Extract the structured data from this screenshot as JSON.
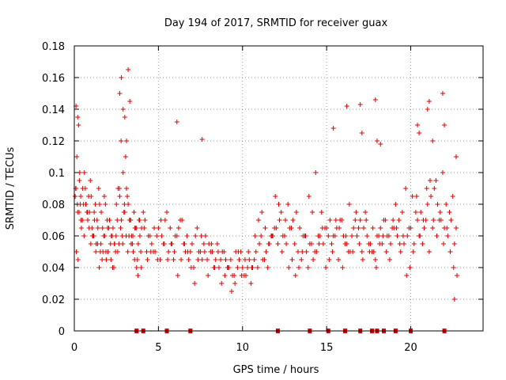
{
  "chart_data": {
    "type": "scatter",
    "title": "Day 194 of 2017, SRMTID for receiver guax",
    "xlabel": "GPS time / hours",
    "ylabel": "SRMTID / TECUs",
    "xlim": [
      0,
      24.3
    ],
    "ylim": [
      0,
      0.18
    ],
    "xticks": [
      0,
      5,
      10,
      15,
      20
    ],
    "xtick_labels": [
      "0",
      "5",
      "10",
      "15",
      "20"
    ],
    "yticks": [
      0,
      0.02,
      0.04,
      0.06,
      0.08,
      0.1,
      0.12,
      0.14,
      0.16,
      0.18
    ],
    "ytick_labels": [
      "0",
      "0.02",
      "0.04",
      "0.06",
      "0.08",
      "0.1",
      "0.12",
      "0.14",
      "0.16",
      "0.18"
    ],
    "grid": true,
    "marker": "+",
    "color": "#e00000",
    "series": [
      {
        "name": "SRMTID",
        "x": [
          0.05,
          0.1,
          0.15,
          0.2,
          0.25,
          0.3,
          0.35,
          0.4,
          0.5,
          0.6,
          0.7,
          0.8,
          0.9,
          1.0,
          1.1,
          1.2,
          1.3,
          1.4,
          1.5,
          1.6,
          1.7,
          1.8,
          1.9,
          2.0,
          2.1,
          2.2,
          2.3,
          2.4,
          2.5,
          2.6,
          2.7,
          2.8,
          2.9,
          3.0,
          3.1,
          3.2,
          3.3,
          3.4,
          3.5,
          3.6,
          3.7,
          3.8,
          3.9,
          4.0,
          4.2,
          4.4,
          4.6,
          4.8,
          5.0,
          5.2,
          5.4,
          5.6,
          5.8,
          6.0,
          6.2,
          6.4,
          6.6,
          6.8,
          7.0,
          7.2,
          7.4,
          7.6,
          7.8,
          8.0,
          8.2,
          8.4,
          8.6,
          8.8,
          9.0,
          9.2,
          9.4,
          9.6,
          9.8,
          10.0,
          10.2,
          10.4,
          10.6,
          10.8,
          11.0,
          11.2,
          11.4,
          11.6,
          11.8,
          12.0,
          12.2,
          12.4,
          12.6,
          12.8,
          13.0,
          13.2,
          13.4,
          13.6,
          13.8,
          14.0,
          14.2,
          14.4,
          14.6,
          14.8,
          15.0,
          15.2,
          15.4,
          15.6,
          15.8,
          16.0,
          16.2,
          16.4,
          16.6,
          16.8,
          17.0,
          17.2,
          17.4,
          17.6,
          17.8,
          18.0,
          18.2,
          18.4,
          18.6,
          18.8,
          19.0,
          19.2,
          19.4,
          19.6,
          19.8,
          20.0,
          20.2,
          20.4,
          20.6,
          20.8,
          21.0,
          21.2,
          21.4,
          21.6,
          21.8,
          22.0,
          22.2,
          22.4,
          22.6,
          0.12,
          0.22,
          0.32,
          0.42,
          0.55,
          0.65,
          0.75,
          0.85,
          0.95,
          1.05,
          1.15,
          1.25,
          1.35,
          1.45,
          1.55,
          1.65,
          1.75,
          1.85,
          1.95,
          2.05,
          2.15,
          2.25,
          2.35,
          2.45,
          2.55,
          2.65,
          2.75,
          2.85,
          2.95,
          3.05,
          3.15,
          3.25,
          3.35,
          3.45,
          3.55,
          3.65,
          3.75,
          3.85,
          3.95,
          4.1,
          4.3,
          4.5,
          4.7,
          4.9,
          5.1,
          5.3,
          5.5,
          5.7,
          5.9,
          6.1,
          6.3,
          6.5,
          6.7,
          6.9,
          7.1,
          7.3,
          7.5,
          7.7,
          7.9,
          8.1,
          8.3,
          8.5,
          8.7,
          8.9,
          9.1,
          9.3,
          9.5,
          9.7,
          9.9,
          10.1,
          10.3,
          10.5,
          10.7,
          10.9,
          11.1,
          11.3,
          11.5,
          11.7,
          11.9,
          12.1,
          12.3,
          12.5,
          12.7,
          12.9,
          13.1,
          13.3,
          13.5,
          13.7,
          13.9,
          14.1,
          14.3,
          14.5,
          14.7,
          14.9,
          15.1,
          15.3,
          15.5,
          15.7,
          15.9,
          16.1,
          16.3,
          16.5,
          16.7,
          16.9,
          17.1,
          17.3,
          17.5,
          17.7,
          17.9,
          18.1,
          18.3,
          18.5,
          18.7,
          18.9,
          19.1,
          19.3,
          19.5,
          19.7,
          19.9,
          20.1,
          20.3,
          20.5,
          20.7,
          20.9,
          21.1,
          21.3,
          21.5,
          21.7,
          21.9,
          22.1,
          22.3,
          22.5,
          22.7,
          0.08,
          0.18,
          0.28,
          0.38,
          0.48,
          0.58,
          0.68,
          0.78,
          0.88,
          0.98,
          1.08,
          1.18,
          1.28,
          1.38,
          1.48,
          1.58,
          1.68,
          1.78,
          1.88,
          1.98,
          2.08,
          2.18,
          2.28,
          2.38,
          2.48,
          2.58,
          2.68,
          2.78,
          2.88,
          2.98,
          3.08,
          3.18,
          3.28,
          3.38,
          3.48,
          3.58,
          3.68,
          3.78,
          3.88,
          3.98,
          4.15,
          4.35,
          4.55,
          4.75,
          4.95,
          5.15,
          5.35,
          5.55,
          5.75,
          5.95,
          6.15,
          6.35,
          6.55,
          6.75,
          6.95,
          7.15,
          7.35,
          7.55,
          7.75,
          7.95,
          8.15,
          8.35,
          8.55,
          8.75,
          8.95,
          9.15,
          9.35,
          9.55,
          9.75,
          9.95,
          10.15,
          10.35,
          10.55,
          10.75,
          10.95,
          11.15,
          11.35,
          11.55,
          11.75,
          11.95,
          12.15,
          12.35,
          12.55,
          12.75,
          12.95,
          13.15,
          13.35,
          13.55,
          13.75,
          13.95,
          14.15,
          14.35,
          14.55,
          14.75,
          14.95,
          15.15,
          15.35,
          15.55,
          15.75,
          15.95,
          16.15,
          16.35,
          16.55,
          16.75,
          16.95,
          17.15,
          17.35,
          17.55,
          17.75,
          17.95,
          18.15,
          18.35,
          18.55,
          18.75,
          18.95,
          19.15,
          19.35,
          19.55,
          19.75,
          19.95,
          20.15,
          20.35,
          20.55,
          20.75,
          20.95,
          21.15,
          21.35,
          21.55,
          21.75,
          21.95,
          22.15,
          22.35,
          22.55,
          22.75,
          2.7,
          2.8,
          2.9,
          3.0,
          3.1,
          3.2,
          3.3,
          6.1,
          7.6,
          15.4,
          16.2,
          17.0,
          17.1,
          17.9,
          18.0,
          18.2,
          20.4,
          20.5,
          21.0,
          21.1,
          21.3,
          21.9,
          22.0,
          22.7,
          0.1,
          0.2,
          22.6
        ],
        "y": [
          0.085,
          0.09,
          0.11,
          0.075,
          0.13,
          0.095,
          0.08,
          0.07,
          0.09,
          0.1,
          0.08,
          0.07,
          0.075,
          0.085,
          0.06,
          0.07,
          0.055,
          0.065,
          0.08,
          0.075,
          0.05,
          0.06,
          0.045,
          0.05,
          0.07,
          0.06,
          0.065,
          0.055,
          0.08,
          0.09,
          0.085,
          0.07,
          0.1,
          0.075,
          0.09,
          0.08,
          0.07,
          0.06,
          0.05,
          0.065,
          0.04,
          0.055,
          0.06,
          0.065,
          0.07,
          0.06,
          0.055,
          0.05,
          0.065,
          0.06,
          0.07,
          0.05,
          0.055,
          0.06,
          0.065,
          0.07,
          0.05,
          0.045,
          0.055,
          0.06,
          0.05,
          0.045,
          0.06,
          0.055,
          0.05,
          0.045,
          0.04,
          0.05,
          0.045,
          0.04,
          0.035,
          0.05,
          0.045,
          0.04,
          0.035,
          0.045,
          0.04,
          0.05,
          0.055,
          0.045,
          0.05,
          0.055,
          0.06,
          0.065,
          0.07,
          0.06,
          0.055,
          0.065,
          0.07,
          0.075,
          0.065,
          0.06,
          0.05,
          0.055,
          0.045,
          0.05,
          0.06,
          0.055,
          0.065,
          0.07,
          0.06,
          0.065,
          0.07,
          0.06,
          0.055,
          0.05,
          0.065,
          0.06,
          0.07,
          0.065,
          0.06,
          0.055,
          0.05,
          0.06,
          0.065,
          0.07,
          0.06,
          0.055,
          0.065,
          0.06,
          0.05,
          0.055,
          0.06,
          0.065,
          0.055,
          0.07,
          0.075,
          0.065,
          0.08,
          0.085,
          0.09,
          0.08,
          0.07,
          0.065,
          0.06,
          0.07,
          0.055,
          0.05,
          0.045,
          0.1,
          0.065,
          0.08,
          0.09,
          0.075,
          0.085,
          0.095,
          0.065,
          0.06,
          0.08,
          0.07,
          0.09,
          0.05,
          0.045,
          0.06,
          0.08,
          0.07,
          0.065,
          0.055,
          0.06,
          0.04,
          0.05,
          0.07,
          0.055,
          0.065,
          0.06,
          0.075,
          0.11,
          0.085,
          0.06,
          0.07,
          0.055,
          0.075,
          0.065,
          0.045,
          0.07,
          0.05,
          0.075,
          0.05,
          0.06,
          0.05,
          0.06,
          0.045,
          0.055,
          0.075,
          0.065,
          0.045,
          0.06,
          0.07,
          0.055,
          0.06,
          0.05,
          0.04,
          0.065,
          0.05,
          0.055,
          0.045,
          0.05,
          0.04,
          0.055,
          0.045,
          0.05,
          0.04,
          0.045,
          0.035,
          0.04,
          0.05,
          0.035,
          0.04,
          0.03,
          0.045,
          0.04,
          0.06,
          0.045,
          0.04,
          0.06,
          0.065,
          0.055,
          0.075,
          0.06,
          0.08,
          0.065,
          0.055,
          0.05,
          0.045,
          0.06,
          0.04,
          0.055,
          0.05,
          0.06,
          0.075,
          0.065,
          0.06,
          0.055,
          0.06,
          0.045,
          0.07,
          0.055,
          0.05,
          0.06,
          0.07,
          0.065,
          0.05,
          0.075,
          0.055,
          0.05,
          0.045,
          0.06,
          0.055,
          0.07,
          0.06,
          0.065,
          0.08,
          0.07,
          0.075,
          0.09,
          0.065,
          0.085,
          0.075,
          0.06,
          0.055,
          0.07,
          0.05,
          0.065,
          0.095,
          0.07,
          0.1,
          0.08,
          0.075,
          0.085,
          0.065,
          0.09,
          0.08,
          0.075,
          0.085,
          0.07,
          0.06,
          0.08,
          0.075,
          0.065,
          0.055,
          0.06,
          0.075,
          0.05,
          0.055,
          0.04,
          0.055,
          0.065,
          0.085,
          0.05,
          0.065,
          0.07,
          0.045,
          0.04,
          0.055,
          0.06,
          0.05,
          0.09,
          0.12,
          0.055,
          0.08,
          0.06,
          0.05,
          0.07,
          0.055,
          0.06,
          0.045,
          0.065,
          0.035,
          0.07,
          0.04,
          0.065,
          0.045,
          0.05,
          0.065,
          0.045,
          0.07,
          0.055,
          0.045,
          0.055,
          0.05,
          0.035,
          0.045,
          0.055,
          0.05,
          0.04,
          0.03,
          0.045,
          0.06,
          0.05,
          0.035,
          0.055,
          0.04,
          0.05,
          0.03,
          0.035,
          0.04,
          0.025,
          0.03,
          0.05,
          0.035,
          0.045,
          0.05,
          0.04,
          0.06,
          0.07,
          0.075,
          0.065,
          0.055,
          0.06,
          0.085,
          0.08,
          0.05,
          0.07,
          0.04,
          0.045,
          0.035,
          0.04,
          0.05,
          0.06,
          0.085,
          0.075,
          0.1,
          0.055,
          0.065,
          0.04,
          0.045,
          0.05,
          0.07,
          0.065,
          0.04,
          0.06,
          0.08,
          0.05,
          0.075,
          0.055,
          0.045,
          0.07,
          0.05,
          0.065,
          0.04,
          0.055,
          0.06,
          0.05,
          0.045,
          0.07,
          0.065,
          0.055,
          0.06,
          0.035,
          0.04,
          0.05,
          0.085,
          0.06,
          0.07,
          0.09,
          0.095,
          0.07,
          0.06,
          0.075,
          0.055,
          0.065,
          0.05,
          0.04,
          0.035,
          0.15,
          0.16,
          0.14,
          0.135,
          0.12,
          0.165,
          0.145,
          0.132,
          0.121,
          0.128,
          0.142,
          0.143,
          0.125,
          0.146,
          0.12,
          0.118,
          0.13,
          0.125,
          0.14,
          0.145,
          0.12,
          0.15,
          0.13,
          0.11,
          0.142,
          0.135,
          0.02
        ],
        "zero_markers_x": [
          3.7,
          4.1,
          5.5,
          6.9,
          12.1,
          14.0,
          15.1,
          16.1,
          17.0,
          17.7,
          18.0,
          18.4,
          19.1,
          20.0,
          22.0
        ]
      }
    ]
  }
}
